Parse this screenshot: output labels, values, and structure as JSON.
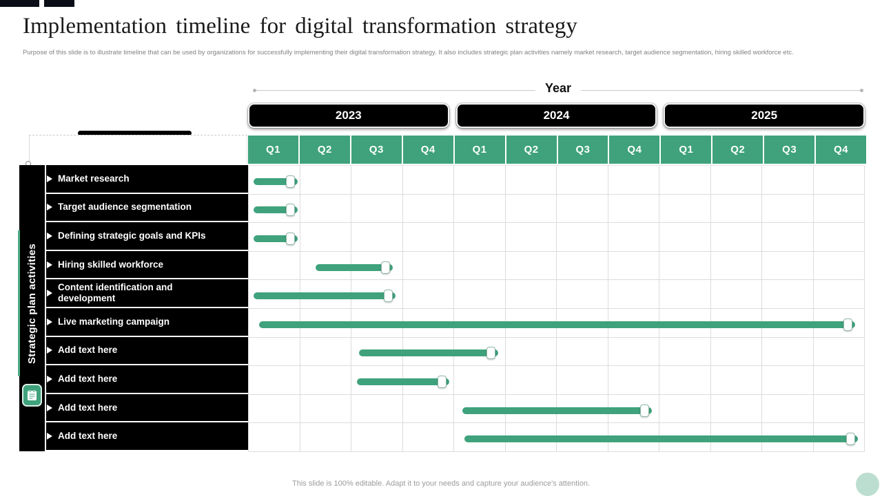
{
  "slide": {
    "title": "Implementation timeline for digital transformation strategy",
    "description": "Purpose of this slide is to illustrate timeline  that can be used by organizations for successfully implementing  their digital transformation strategy. It also includes strategic plan activities namely market research, target audience segmentation,  hiring skilled workforce etc.",
    "footer": "This slide is 100% editable.  Adapt it to your needs and capture your audience's attention."
  },
  "colors": {
    "accent_green": "#3fa27c",
    "row_black": "#000000",
    "corner_bar_navy": "#0b0d17",
    "grid_line": "#dcdcdc",
    "mint_circle": "#bcded0"
  },
  "timeline": {
    "axis_label": "Year",
    "years": [
      "2023",
      "2024",
      "2025"
    ],
    "quarters": [
      "Q1",
      "Q2",
      "Q3",
      "Q4",
      "Q1",
      "Q2",
      "Q3",
      "Q4",
      "Q1",
      "Q2",
      "Q3",
      "Q4"
    ]
  },
  "sidebar": {
    "label": "Strategic plan activities",
    "icon": "notepad-icon"
  },
  "chart_data": {
    "type": "gantt",
    "title": "Implementation timeline for digital transformation strategy",
    "x_axis": "Year (2023-2025, quarterly)",
    "unit": "quarters since start of 2023 Q1",
    "x_domain": [
      0,
      12
    ],
    "grid": true,
    "tasks": [
      {
        "label": "Market research",
        "start": 0.1,
        "end": 0.95
      },
      {
        "label": "Target audience segmentation",
        "start": 0.1,
        "end": 0.95
      },
      {
        "label": "Defining strategic goals and KPIs",
        "start": 0.1,
        "end": 0.95
      },
      {
        "label": "Hiring skilled workforce",
        "start": 1.3,
        "end": 2.8
      },
      {
        "label": "Content identification and development",
        "start": 0.1,
        "end": 2.85
      },
      {
        "label": "Live marketing campaign",
        "start": 0.2,
        "end": 11.8
      },
      {
        "label": "Add  text here",
        "start": 2.15,
        "end": 4.85
      },
      {
        "label": "Add  text here",
        "start": 2.1,
        "end": 3.9
      },
      {
        "label": "Add  text here",
        "start": 4.15,
        "end": 7.85
      },
      {
        "label": "Add  text here",
        "start": 4.2,
        "end": 11.85
      }
    ]
  }
}
